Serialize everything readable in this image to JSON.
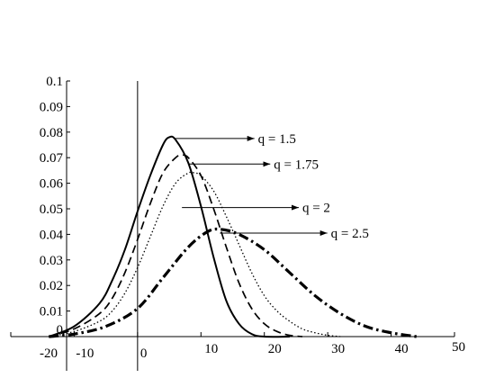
{
  "chart_data": {
    "type": "line",
    "title": "",
    "xlabel": "",
    "ylabel": "",
    "xlim": [
      -20,
      50
    ],
    "ylim": [
      0,
      0.1
    ],
    "grid": false,
    "x_ticks": [
      {
        "value": -20,
        "label": "-20"
      },
      {
        "value": -10,
        "label": "-10"
      },
      {
        "value": 0,
        "label": "0"
      },
      {
        "value": 10,
        "label": "10"
      },
      {
        "value": 20,
        "label": "20"
      },
      {
        "value": 30,
        "label": "30"
      },
      {
        "value": 40,
        "label": "40"
      },
      {
        "value": 50,
        "label": "50"
      }
    ],
    "y_ticks": [
      {
        "value": 0,
        "label": "0"
      },
      {
        "value": 0.01,
        "label": "0.01"
      },
      {
        "value": 0.02,
        "label": "0.02"
      },
      {
        "value": 0.03,
        "label": "0.03"
      },
      {
        "value": 0.04,
        "label": "0.04"
      },
      {
        "value": 0.05,
        "label": "0.05"
      },
      {
        "value": 0.06,
        "label": "0.06"
      },
      {
        "value": 0.07,
        "label": "0.07"
      },
      {
        "value": 0.08,
        "label": "0.08"
      },
      {
        "value": 0.09,
        "label": "0.09"
      },
      {
        "value": 0.1,
        "label": "0.1"
      }
    ],
    "series": [
      {
        "name": "q = 1.5",
        "line_style": "solid",
        "x": [
          -14,
          -10,
          -6,
          -4,
          -2,
          0,
          2,
          4,
          5,
          6,
          8,
          10,
          12,
          14,
          16,
          18,
          20,
          24
        ],
        "y": [
          0.0,
          0.004,
          0.013,
          0.022,
          0.034,
          0.049,
          0.063,
          0.075,
          0.078,
          0.077,
          0.068,
          0.051,
          0.031,
          0.014,
          0.005,
          0.001,
          0.0,
          0.0
        ]
      },
      {
        "name": "q = 1.75",
        "line_style": "dashed",
        "x": [
          -14,
          -10,
          -6,
          -4,
          -2,
          0,
          2,
          4,
          6,
          7,
          8,
          10,
          12,
          14,
          16,
          18,
          20,
          22,
          24,
          26
        ],
        "y": [
          0.0,
          0.003,
          0.009,
          0.015,
          0.025,
          0.038,
          0.052,
          0.064,
          0.07,
          0.071,
          0.07,
          0.063,
          0.05,
          0.035,
          0.021,
          0.011,
          0.005,
          0.002,
          0.0005,
          0.0
        ]
      },
      {
        "name": "q = 2",
        "line_style": "dotted",
        "x": [
          -14,
          -10,
          -6,
          -4,
          -2,
          0,
          2,
          4,
          6,
          8,
          9,
          10,
          12,
          14,
          16,
          18,
          20,
          22,
          24,
          26,
          28,
          30,
          32
        ],
        "y": [
          0.0,
          0.002,
          0.006,
          0.01,
          0.017,
          0.027,
          0.039,
          0.051,
          0.06,
          0.064,
          0.064,
          0.063,
          0.057,
          0.047,
          0.036,
          0.025,
          0.016,
          0.01,
          0.006,
          0.003,
          0.0015,
          0.0005,
          0.0
        ]
      },
      {
        "name": "q = 2.5",
        "line_style": "dash-dot",
        "x": [
          -14,
          -10,
          -5,
          0,
          4,
          8,
          11,
          13,
          16,
          20,
          24,
          28,
          32,
          36,
          40,
          44
        ],
        "y": [
          0.0,
          0.001,
          0.004,
          0.011,
          0.023,
          0.035,
          0.041,
          0.042,
          0.04,
          0.034,
          0.025,
          0.016,
          0.009,
          0.004,
          0.0015,
          0.0
        ]
      }
    ],
    "annotations": [
      {
        "text": "q = 1.5",
        "series": "q = 1.5",
        "arrow_from": [
          6,
          0.0775
        ],
        "label_at": [
          19,
          0.0775
        ]
      },
      {
        "text": "q = 1.75",
        "series": "q = 1.75",
        "arrow_from": [
          8,
          0.0675
        ],
        "label_at": [
          21.5,
          0.0675
        ]
      },
      {
        "text": "q = 2",
        "series": "q = 2",
        "arrow_from": [
          7,
          0.0505
        ],
        "label_at": [
          26,
          0.0505
        ]
      },
      {
        "text": "q = 2.5",
        "series": "q = 2.5",
        "arrow_from": [
          13,
          0.0405
        ],
        "label_at": [
          30.5,
          0.0405
        ]
      }
    ]
  }
}
